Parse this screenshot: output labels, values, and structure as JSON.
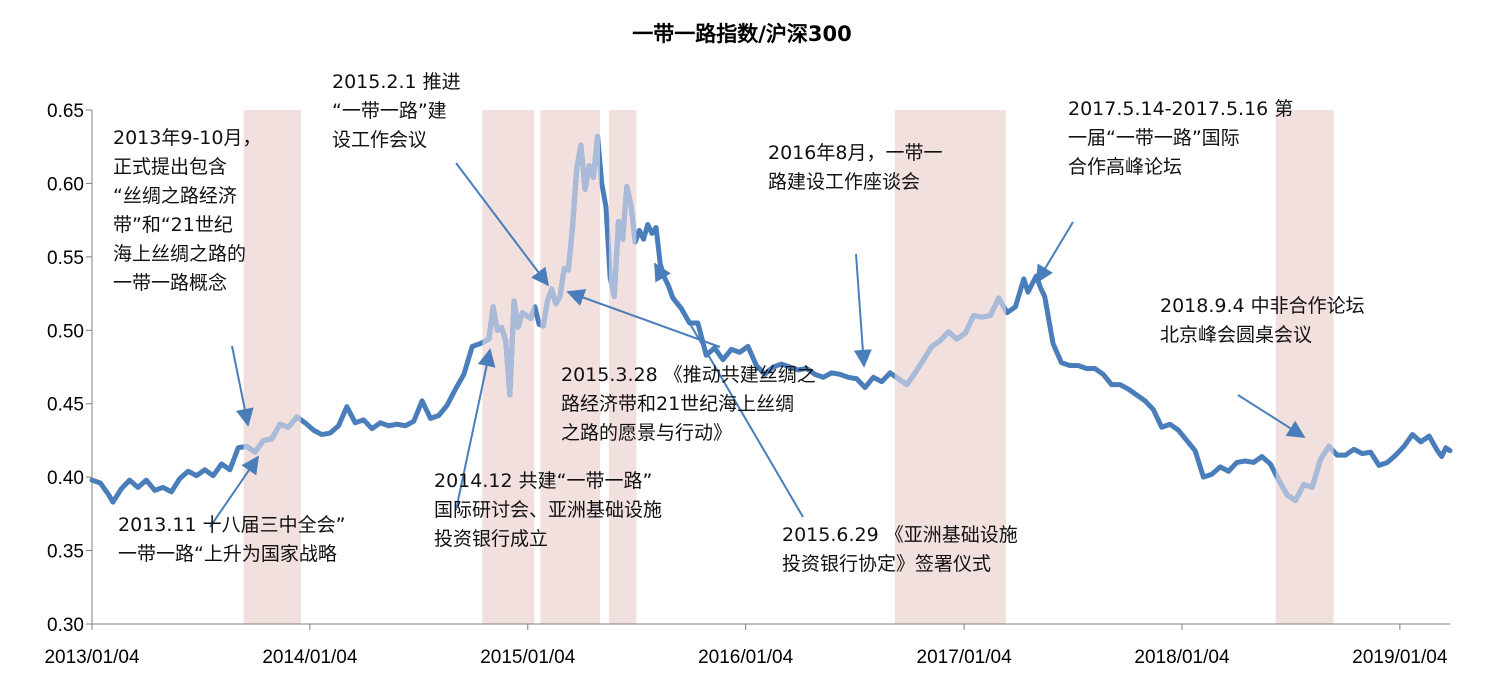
{
  "chart_data": {
    "type": "line",
    "title": "一带一路指数/沪深300",
    "xlabel": "",
    "ylabel": "",
    "ylim": [
      0.3,
      0.65
    ],
    "yticks": [
      "0.30",
      "0.35",
      "0.40",
      "0.45",
      "0.50",
      "0.55",
      "0.60",
      "0.65"
    ],
    "xlim": [
      "2013-01-04",
      "2019-03-29"
    ],
    "xticks": [
      {
        "date": "2013-01-04",
        "label": "2013/01/04"
      },
      {
        "date": "2014-01-04",
        "label": "2014/01/04"
      },
      {
        "date": "2015-01-04",
        "label": "2015/01/04"
      },
      {
        "date": "2016-01-04",
        "label": "2016/01/04"
      },
      {
        "date": "2017-01-04",
        "label": "2017/01/04"
      },
      {
        "date": "2018-01-04",
        "label": "2018/01/04"
      },
      {
        "date": "2019-01-04",
        "label": "2019/01/04"
      }
    ],
    "grid": false,
    "legend": "none",
    "colors": {
      "line": "#4A7EBB",
      "line_highlight": "#A9BBD9",
      "band": "#F2E0DE",
      "arrow": "#4A7EBB"
    },
    "highlight_bands": [
      {
        "start": "2013-09-15",
        "end": "2013-12-20"
      },
      {
        "start": "2014-10-20",
        "end": "2015-01-15"
      },
      {
        "start": "2015-01-25",
        "end": "2015-05-05"
      },
      {
        "start": "2015-05-20",
        "end": "2015-07-05"
      },
      {
        "start": "2016-09-10",
        "end": "2017-03-15"
      },
      {
        "start": "2018-06-10",
        "end": "2018-09-15"
      }
    ],
    "series": [
      {
        "values": [
          [
            "2013-01-04",
            0.398
          ],
          [
            "2013-01-18",
            0.396
          ],
          [
            "2013-02-01",
            0.388
          ],
          [
            "2013-02-08",
            0.383
          ],
          [
            "2013-02-22",
            0.392
          ],
          [
            "2013-03-08",
            0.398
          ],
          [
            "2013-03-22",
            0.393
          ],
          [
            "2013-04-05",
            0.398
          ],
          [
            "2013-04-19",
            0.391
          ],
          [
            "2013-05-03",
            0.393
          ],
          [
            "2013-05-17",
            0.39
          ],
          [
            "2013-05-31",
            0.399
          ],
          [
            "2013-06-14",
            0.404
          ],
          [
            "2013-06-28",
            0.401
          ],
          [
            "2013-07-12",
            0.405
          ],
          [
            "2013-07-26",
            0.401
          ],
          [
            "2013-08-09",
            0.409
          ],
          [
            "2013-08-23",
            0.405
          ],
          [
            "2013-09-06",
            0.42
          ],
          [
            "2013-09-20",
            0.421
          ],
          [
            "2013-10-04",
            0.417
          ],
          [
            "2013-10-18",
            0.425
          ],
          [
            "2013-11-01",
            0.426
          ],
          [
            "2013-11-15",
            0.436
          ],
          [
            "2013-11-29",
            0.434
          ],
          [
            "2013-12-13",
            0.441
          ],
          [
            "2013-12-27",
            0.437
          ],
          [
            "2014-01-10",
            0.432
          ],
          [
            "2014-01-24",
            0.429
          ],
          [
            "2014-02-07",
            0.43
          ],
          [
            "2014-02-21",
            0.435
          ],
          [
            "2014-03-07",
            0.448
          ],
          [
            "2014-03-21",
            0.437
          ],
          [
            "2014-04-04",
            0.439
          ],
          [
            "2014-04-18",
            0.433
          ],
          [
            "2014-05-02",
            0.437
          ],
          [
            "2014-05-16",
            0.435
          ],
          [
            "2014-05-30",
            0.436
          ],
          [
            "2014-06-13",
            0.435
          ],
          [
            "2014-06-27",
            0.438
          ],
          [
            "2014-07-11",
            0.452
          ],
          [
            "2014-07-25",
            0.44
          ],
          [
            "2014-08-08",
            0.442
          ],
          [
            "2014-08-22",
            0.449
          ],
          [
            "2014-09-05",
            0.46
          ],
          [
            "2014-09-19",
            0.47
          ],
          [
            "2014-10-03",
            0.489
          ],
          [
            "2014-10-17",
            0.491
          ],
          [
            "2014-10-31",
            0.494
          ],
          [
            "2014-11-07",
            0.516
          ],
          [
            "2014-11-14",
            0.5
          ],
          [
            "2014-11-21",
            0.502
          ],
          [
            "2014-11-28",
            0.493
          ],
          [
            "2014-12-05",
            0.456
          ],
          [
            "2014-12-12",
            0.52
          ],
          [
            "2014-12-19",
            0.502
          ],
          [
            "2014-12-26",
            0.512
          ],
          [
            "2015-01-09",
            0.508
          ],
          [
            "2015-01-16",
            0.516
          ],
          [
            "2015-01-23",
            0.504
          ],
          [
            "2015-01-30",
            0.503
          ],
          [
            "2015-02-06",
            0.52
          ],
          [
            "2015-02-13",
            0.528
          ],
          [
            "2015-02-20",
            0.518
          ],
          [
            "2015-02-27",
            0.523
          ],
          [
            "2015-03-06",
            0.542
          ],
          [
            "2015-03-13",
            0.541
          ],
          [
            "2015-03-20",
            0.57
          ],
          [
            "2015-03-27",
            0.61
          ],
          [
            "2015-04-03",
            0.626
          ],
          [
            "2015-04-10",
            0.596
          ],
          [
            "2015-04-17",
            0.612
          ],
          [
            "2015-04-24",
            0.604
          ],
          [
            "2015-05-01",
            0.632
          ],
          [
            "2015-05-08",
            0.6
          ],
          [
            "2015-05-15",
            0.584
          ],
          [
            "2015-05-22",
            0.536
          ],
          [
            "2015-05-29",
            0.523
          ],
          [
            "2015-06-05",
            0.574
          ],
          [
            "2015-06-12",
            0.562
          ],
          [
            "2015-06-19",
            0.598
          ],
          [
            "2015-06-26",
            0.585
          ],
          [
            "2015-07-03",
            0.56
          ],
          [
            "2015-07-10",
            0.568
          ],
          [
            "2015-07-17",
            0.562
          ],
          [
            "2015-07-24",
            0.572
          ],
          [
            "2015-07-31",
            0.566
          ],
          [
            "2015-08-07",
            0.57
          ],
          [
            "2015-08-14",
            0.545
          ],
          [
            "2015-08-21",
            0.536
          ],
          [
            "2015-08-28",
            0.53
          ],
          [
            "2015-09-04",
            0.522
          ],
          [
            "2015-09-18",
            0.515
          ],
          [
            "2015-10-02",
            0.505
          ],
          [
            "2015-10-16",
            0.505
          ],
          [
            "2015-10-30",
            0.483
          ],
          [
            "2015-11-13",
            0.488
          ],
          [
            "2015-11-27",
            0.48
          ],
          [
            "2015-12-11",
            0.487
          ],
          [
            "2015-12-25",
            0.485
          ],
          [
            "2016-01-08",
            0.489
          ],
          [
            "2016-01-22",
            0.476
          ],
          [
            "2016-02-05",
            0.47
          ],
          [
            "2016-02-19",
            0.475
          ],
          [
            "2016-03-04",
            0.477
          ],
          [
            "2016-03-18",
            0.475
          ],
          [
            "2016-04-01",
            0.473
          ],
          [
            "2016-04-15",
            0.474
          ],
          [
            "2016-04-29",
            0.47
          ],
          [
            "2016-05-13",
            0.468
          ],
          [
            "2016-05-27",
            0.471
          ],
          [
            "2016-06-10",
            0.47
          ],
          [
            "2016-06-24",
            0.468
          ],
          [
            "2016-07-08",
            0.467
          ],
          [
            "2016-07-22",
            0.461
          ],
          [
            "2016-08-05",
            0.468
          ],
          [
            "2016-08-19",
            0.465
          ],
          [
            "2016-09-02",
            0.471
          ],
          [
            "2016-09-16",
            0.467
          ],
          [
            "2016-09-30",
            0.463
          ],
          [
            "2016-10-14",
            0.471
          ],
          [
            "2016-10-28",
            0.48
          ],
          [
            "2016-11-11",
            0.489
          ],
          [
            "2016-11-25",
            0.493
          ],
          [
            "2016-12-09",
            0.499
          ],
          [
            "2016-12-23",
            0.494
          ],
          [
            "2017-01-06",
            0.498
          ],
          [
            "2017-01-20",
            0.51
          ],
          [
            "2017-02-03",
            0.509
          ],
          [
            "2017-02-17",
            0.51
          ],
          [
            "2017-03-03",
            0.522
          ],
          [
            "2017-03-17",
            0.512
          ],
          [
            "2017-03-31",
            0.516
          ],
          [
            "2017-04-14",
            0.535
          ],
          [
            "2017-04-21",
            0.526
          ],
          [
            "2017-05-05",
            0.537
          ],
          [
            "2017-05-12",
            0.529
          ],
          [
            "2017-05-19",
            0.523
          ],
          [
            "2017-06-02",
            0.491
          ],
          [
            "2017-06-16",
            0.478
          ],
          [
            "2017-06-30",
            0.476
          ],
          [
            "2017-07-14",
            0.476
          ],
          [
            "2017-07-28",
            0.474
          ],
          [
            "2017-08-11",
            0.474
          ],
          [
            "2017-08-25",
            0.47
          ],
          [
            "2017-09-08",
            0.463
          ],
          [
            "2017-09-22",
            0.463
          ],
          [
            "2017-10-06",
            0.46
          ],
          [
            "2017-10-20",
            0.456
          ],
          [
            "2017-11-03",
            0.452
          ],
          [
            "2017-11-17",
            0.446
          ],
          [
            "2017-12-01",
            0.434
          ],
          [
            "2017-12-15",
            0.436
          ],
          [
            "2017-12-29",
            0.432
          ],
          [
            "2018-01-12",
            0.425
          ],
          [
            "2018-01-26",
            0.418
          ],
          [
            "2018-02-09",
            0.4
          ],
          [
            "2018-02-23",
            0.402
          ],
          [
            "2018-03-09",
            0.407
          ],
          [
            "2018-03-23",
            0.404
          ],
          [
            "2018-04-06",
            0.41
          ],
          [
            "2018-04-20",
            0.411
          ],
          [
            "2018-05-04",
            0.41
          ],
          [
            "2018-05-18",
            0.414
          ],
          [
            "2018-06-01",
            0.409
          ],
          [
            "2018-06-15",
            0.398
          ],
          [
            "2018-06-29",
            0.388
          ],
          [
            "2018-07-13",
            0.384
          ],
          [
            "2018-07-27",
            0.395
          ],
          [
            "2018-08-10",
            0.393
          ],
          [
            "2018-08-24",
            0.412
          ],
          [
            "2018-09-07",
            0.421
          ],
          [
            "2018-09-21",
            0.415
          ],
          [
            "2018-10-05",
            0.415
          ],
          [
            "2018-10-19",
            0.419
          ],
          [
            "2018-11-02",
            0.416
          ],
          [
            "2018-11-16",
            0.417
          ],
          [
            "2018-11-30",
            0.408
          ],
          [
            "2018-12-14",
            0.41
          ],
          [
            "2018-12-28",
            0.415
          ],
          [
            "2019-01-11",
            0.421
          ],
          [
            "2019-01-25",
            0.429
          ],
          [
            "2019-02-08",
            0.424
          ],
          [
            "2019-02-22",
            0.428
          ],
          [
            "2019-03-08",
            0.418
          ],
          [
            "2019-03-15",
            0.414
          ],
          [
            "2019-03-22",
            0.42
          ],
          [
            "2019-03-29",
            0.418
          ]
        ]
      }
    ],
    "annotations": [
      {
        "lines": [
          "2013年9-10月，",
          "正式提出包含",
          "“丝绸之路经济",
          "带”和“21世纪",
          "海上丝绸之路的",
          "一带一路概念"
        ]
      },
      {
        "lines": [
          "2013.11 十八届三中全会”",
          "一带一路“上升为国家战略"
        ]
      },
      {
        "lines": [
          "2015.2.1 推进",
          "“一带一路”建",
          "设工作会议"
        ]
      },
      {
        "lines": [
          "2014.12 共建“一带一路”",
          "国际研讨会、亚洲基础设施",
          "投资银行成立"
        ]
      },
      {
        "lines": [
          "2015.3.28 《推动共建丝绸之",
          "路经济带和21世纪海上丝绸",
          "之路的愿景与行动》"
        ]
      },
      {
        "lines": [
          "2015.6.29 《亚洲基础设施",
          "投资银行协定》签署仪式"
        ]
      },
      {
        "lines": [
          "2016年8月，一带一",
          "路建设工作座谈会"
        ]
      },
      {
        "lines": [
          "2017.5.14-2017.5.16 第",
          "一届“一带一路”国际",
          "合作高峰论坛"
        ]
      },
      {
        "lines": [
          "2018.9.4 中非合作论坛",
          "北京峰会圆桌会议"
        ]
      }
    ]
  }
}
